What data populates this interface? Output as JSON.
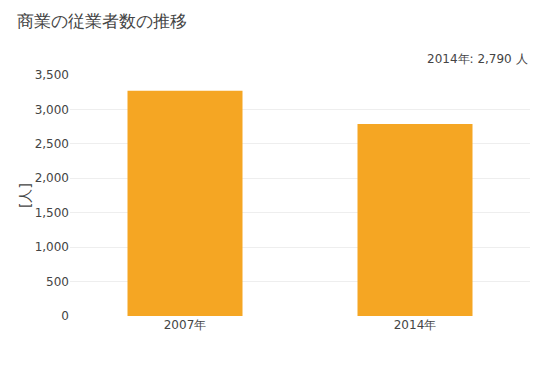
{
  "chart_data": {
    "type": "bar",
    "title": "商業の従業者数の推移",
    "ylabel": "[人]",
    "categories": [
      "2007年",
      "2014年"
    ],
    "values": [
      3270,
      2790
    ],
    "color": "#F5A623",
    "ylim": [
      0,
      3500
    ],
    "yticks": [
      0,
      500,
      {
        "value": 1000,
        "label": "1,000"
      },
      {
        "value": 1500,
        "label": "1,500"
      },
      {
        "value": 2000,
        "label": "2,000"
      },
      {
        "value": 2500,
        "label": "2,500"
      },
      {
        "value": 3000,
        "label": "3,000"
      },
      {
        "value": 3500,
        "label": "3,500"
      }
    ],
    "annotation": "2014年: 2,790 人",
    "grid": true
  }
}
